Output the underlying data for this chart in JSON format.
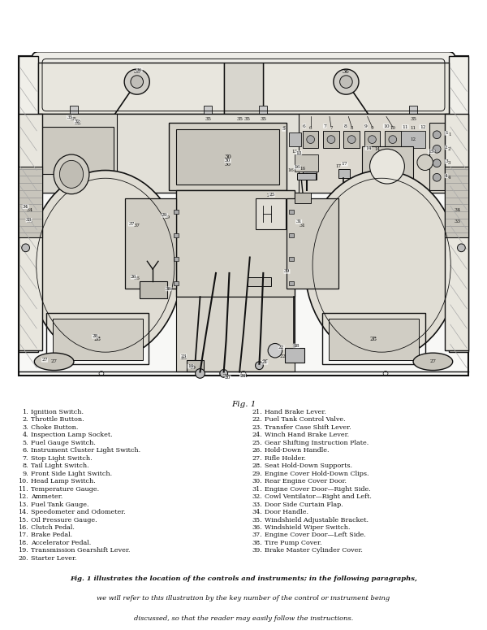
{
  "fig_label": "Fig. 1",
  "fig_caption": "Fig. 1 illustrates the location of the controls and instruments; in the following paragraphs,\nwe will refer to this illustration by the key number of the control or instrument being\ndiscussed, so that the reader may easily follow the instructions.",
  "left_column": [
    [
      "1.",
      "Ignition Switch."
    ],
    [
      "2.",
      "Throttle Button."
    ],
    [
      "3.",
      "Choke Button."
    ],
    [
      "4.",
      "Inspection Lamp Socket."
    ],
    [
      "5.",
      "Fuel Gauge Switch."
    ],
    [
      "6.",
      "Instrument Cluster Light Switch."
    ],
    [
      "7.",
      "Stop Light Switch."
    ],
    [
      "8.",
      "Tail Light Switch."
    ],
    [
      "9.",
      "Front Side Light Switch."
    ],
    [
      "10.",
      "Head Lamp Switch."
    ],
    [
      "11.",
      "Temperature Gauge."
    ],
    [
      "12.",
      "Ammeter."
    ],
    [
      "13.",
      "Fuel Tank Gauge."
    ],
    [
      "14.",
      "Speedometer and Odometer."
    ],
    [
      "15.",
      "Oil Pressure Gauge."
    ],
    [
      "16.",
      "Clutch Pedal."
    ],
    [
      "17.",
      "Brake Pedal."
    ],
    [
      "18.",
      "Accelerator Pedal."
    ],
    [
      "19.",
      "Transmission Gearshift Lever."
    ],
    [
      "20.",
      "Starter Lever."
    ]
  ],
  "right_column": [
    [
      "21.",
      "Hand Brake Lever."
    ],
    [
      "22.",
      "Fuel Tank Control Valve."
    ],
    [
      "23.",
      "Transfer Case Shift Lever."
    ],
    [
      "24.",
      "Winch Hand Brake Lever."
    ],
    [
      "25.",
      "Gear Shifting Instruction Plate."
    ],
    [
      "26.",
      "Hold-Down Handle."
    ],
    [
      "27.",
      "Rifle Holder."
    ],
    [
      "28.",
      "Seat Hold-Down Supports."
    ],
    [
      "29.",
      "Engine Cover Hold-Down Clips."
    ],
    [
      "30.",
      "Rear Engine Cover Door."
    ],
    [
      "31.",
      "Engine Cover Door—Right Side."
    ],
    [
      "32.",
      "Cowl Ventilator—Right and Left."
    ],
    [
      "33.",
      "Door Side Curtain Flap."
    ],
    [
      "34.",
      "Door Handle."
    ],
    [
      "35.",
      "Windshield Adjustable Bracket."
    ],
    [
      "36.",
      "Windshield Wiper Switch."
    ],
    [
      "37.",
      "Engine Cover Door—Left Side."
    ],
    [
      "38.",
      "Tire Pump Cover."
    ],
    [
      "39.",
      "Brake Master Cylinder Cover."
    ]
  ],
  "bg_color": "#ffffff",
  "text_color": "#111111",
  "lc": "#111111",
  "figsize": [
    6.0,
    7.75
  ],
  "dpi": 100
}
